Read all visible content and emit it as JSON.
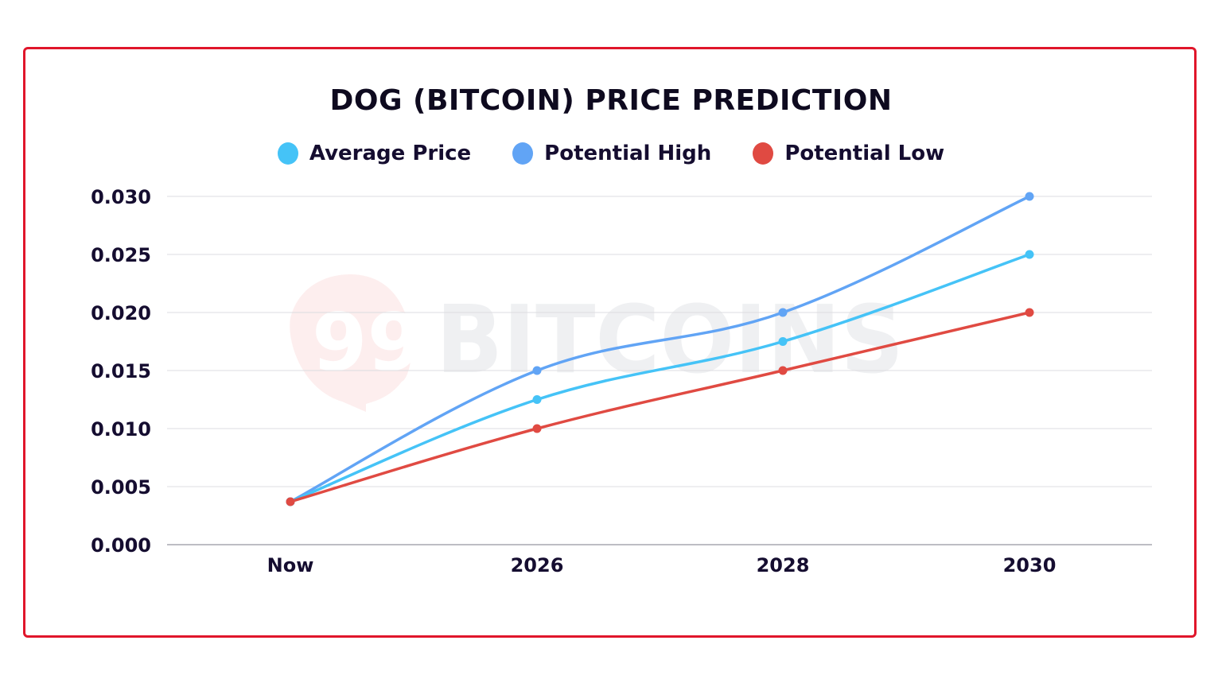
{
  "chart_data": {
    "type": "line",
    "title": "DOG (BITCOIN) PRICE PREDICTION",
    "categories": [
      "Now",
      "2026",
      "2028",
      "2030"
    ],
    "series": [
      {
        "name": "Average Price",
        "color": "#45c3f7",
        "values": [
          0.0037,
          0.0125,
          0.0175,
          0.025
        ]
      },
      {
        "name": "Potential High",
        "color": "#61a4f5",
        "values": [
          0.0037,
          0.015,
          0.02,
          0.03
        ]
      },
      {
        "name": "Potential Low",
        "color": "#e04a42",
        "values": [
          0.0037,
          0.01,
          0.015,
          0.02
        ]
      }
    ],
    "yticks": [
      "0.000",
      "0.005",
      "0.010",
      "0.015",
      "0.020",
      "0.025",
      "0.030"
    ],
    "ylim": [
      0,
      0.03
    ],
    "xlabel": "",
    "ylabel": "",
    "grid": true,
    "legend_position": "top-center",
    "smooth": true
  },
  "frame_color": "#e0162b",
  "watermark": "99BITCOINS"
}
